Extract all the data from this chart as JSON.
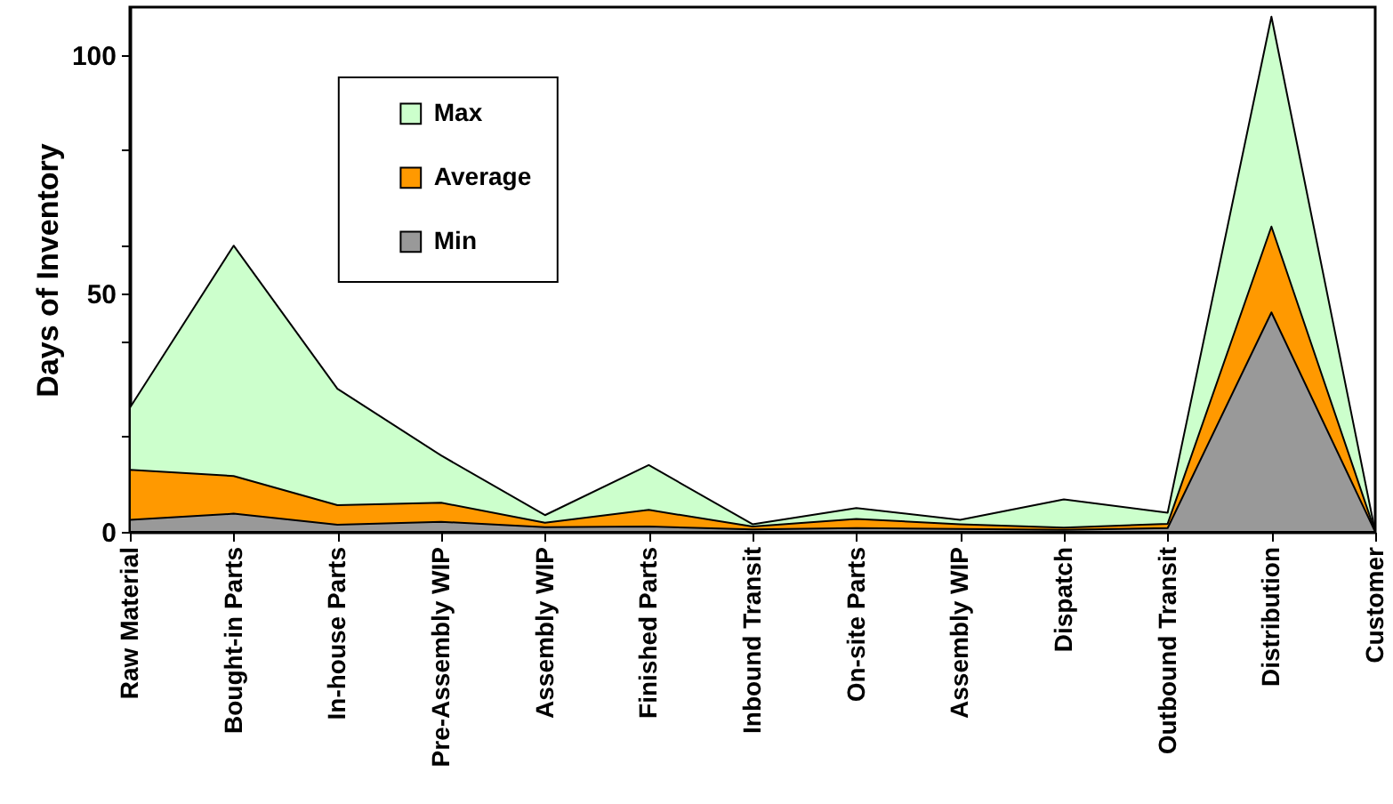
{
  "chart_data": {
    "type": "area",
    "ylabel": "Days of Inventory",
    "categories": [
      "Raw Material",
      "Bought-in Parts",
      "In-house Parts",
      "Pre-Assembly WIP",
      "Assembly WIP",
      "Finished Parts",
      "Inbound Transit",
      "On-site Parts",
      "Assembly WIP",
      "Dispatch",
      "Outbound Transit",
      "Distribution",
      "Customer"
    ],
    "series": [
      {
        "name": "Max",
        "color": "#ccffcc",
        "values": [
          26,
          60,
          30,
          16,
          3.5,
          14,
          1.6,
          5,
          2.5,
          6.8,
          4,
          108,
          0
        ]
      },
      {
        "name": "Average",
        "color": "#ff9900",
        "values": [
          13,
          11.7,
          5.6,
          6.1,
          1.9,
          4.6,
          1.1,
          2.7,
          1.6,
          0.9,
          1.7,
          64,
          0
        ]
      },
      {
        "name": "Min",
        "color": "#999999",
        "values": [
          2.5,
          3.8,
          1.5,
          2.1,
          1,
          1.1,
          0.5,
          0.8,
          0.6,
          0.4,
          0.8,
          46,
          0
        ]
      }
    ],
    "ylim": [
      0,
      110
    ],
    "yticks": [
      0,
      {
        "value": 20,
        "label": null
      },
      {
        "value": 40,
        "label": null
      },
      50,
      {
        "value": 60,
        "label": null
      },
      {
        "value": 80,
        "label": null
      },
      100
    ],
    "legend": "top left"
  }
}
